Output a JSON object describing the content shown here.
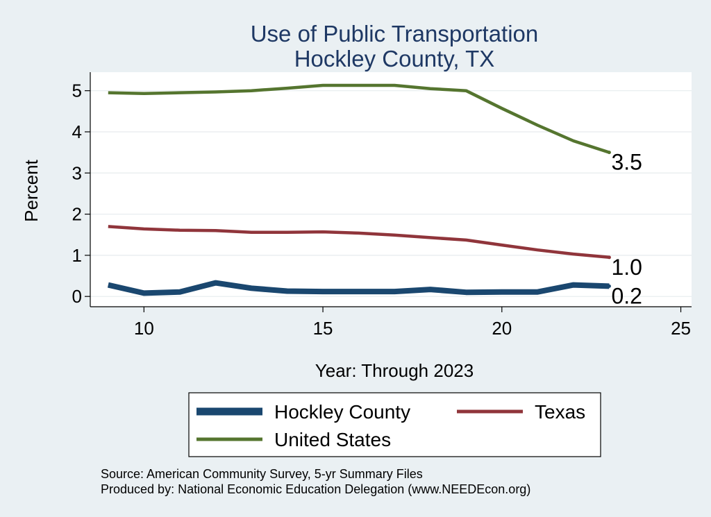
{
  "chart_data": {
    "type": "line",
    "title": "Use of Public Transportation",
    "subtitle": "Hockley County, TX",
    "xlabel": "Year: Through 2023",
    "ylabel": "Percent",
    "xlim": [
      8.5,
      25.3
    ],
    "ylim": [
      -0.25,
      5.45
    ],
    "xticks": [
      10,
      15,
      20,
      25
    ],
    "yticks": [
      0,
      1,
      2,
      3,
      4,
      5
    ],
    "grid": true,
    "x": [
      9,
      10,
      11,
      12,
      13,
      14,
      15,
      16,
      17,
      18,
      19,
      20,
      21,
      22,
      23
    ],
    "series": [
      {
        "name": "Hockley County",
        "color": "#1a476f",
        "values": [
          0.28,
          0.08,
          0.11,
          0.33,
          0.2,
          0.13,
          0.12,
          0.12,
          0.12,
          0.17,
          0.1,
          0.11,
          0.11,
          0.28,
          0.25
        ],
        "end_label": "0.2"
      },
      {
        "name": "Texas",
        "color": "#90353b",
        "values": [
          1.7,
          1.64,
          1.61,
          1.6,
          1.56,
          1.56,
          1.57,
          1.54,
          1.49,
          1.43,
          1.37,
          1.25,
          1.13,
          1.03,
          0.95
        ],
        "end_label": "1.0"
      },
      {
        "name": "United States",
        "color": "#55752f",
        "values": [
          4.95,
          4.93,
          4.95,
          4.97,
          5.0,
          5.06,
          5.13,
          5.13,
          5.13,
          5.05,
          5.0,
          4.57,
          4.16,
          3.78,
          3.5
        ],
        "end_label": "3.5"
      }
    ],
    "legend": [
      "Hockley County",
      "Texas",
      "United States"
    ]
  },
  "footer": {
    "source": "Source: American Community Survey, 5-yr Summary Files",
    "produced": "Produced by: National Economic Education Delegation (www.NEEDEcon.org)"
  }
}
